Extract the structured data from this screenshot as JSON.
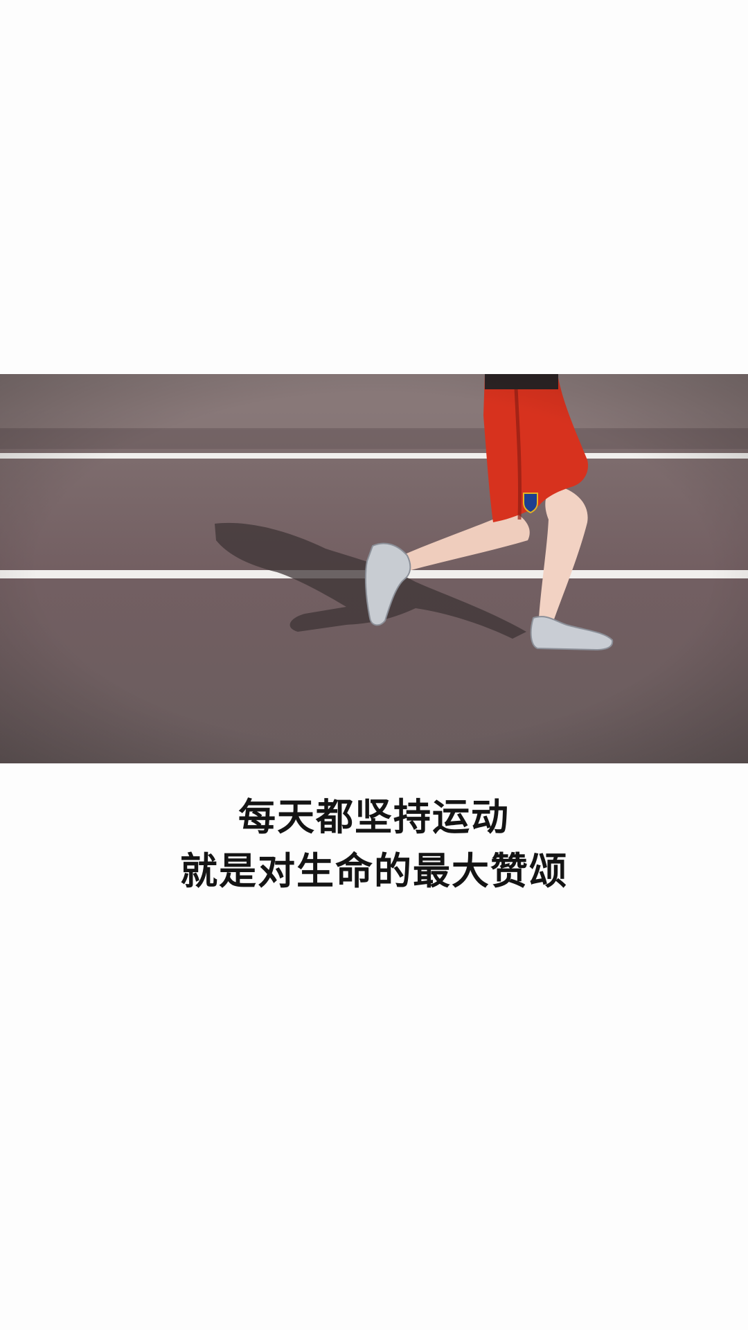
{
  "caption": {
    "line1": "每天都坚持运动",
    "line2": "就是对生命的最大赞颂"
  },
  "colors": {
    "background": "#fdfdfd",
    "track_upper": "#7e6f6f",
    "track_lower": "#6d5e5f",
    "lane_line": "#f2f0ee",
    "shorts": "#d9341f",
    "skin": "#f0cfc0",
    "shoe": "#c9cdd3",
    "text": "#141414"
  }
}
